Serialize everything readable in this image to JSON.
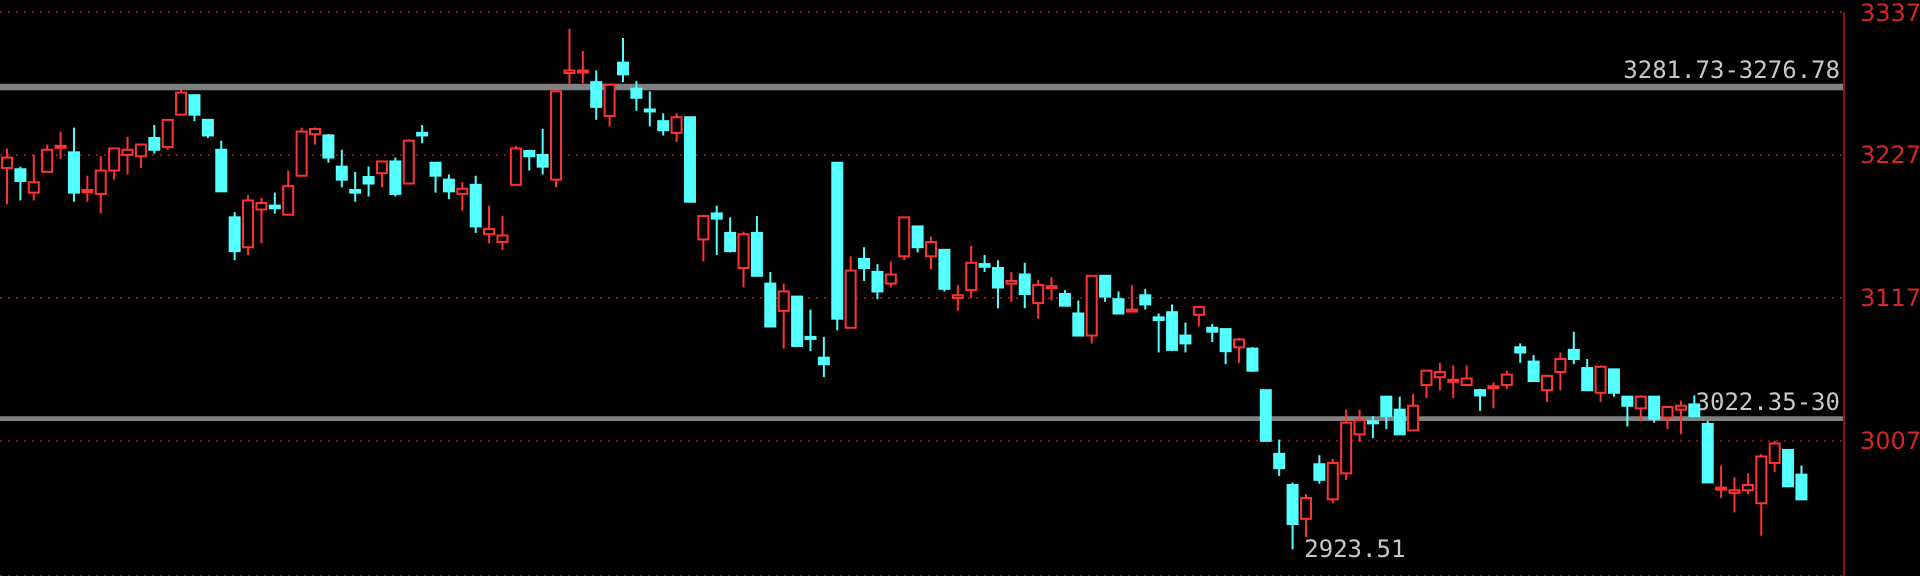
{
  "chart_data": {
    "type": "candlestick",
    "categories": [
      null,
      null,
      null,
      null,
      null,
      null,
      null,
      null,
      null,
      null,
      null,
      null,
      null,
      null,
      null,
      null,
      null,
      null,
      null,
      null,
      null,
      null,
      null,
      null,
      null,
      null,
      null,
      null,
      null,
      null,
      null,
      null,
      null,
      null,
      null,
      null,
      null,
      null,
      null,
      null,
      null,
      null,
      null,
      null,
      null,
      null,
      null,
      null,
      null,
      null,
      null,
      null,
      null,
      null,
      null,
      null,
      null,
      null,
      null,
      null,
      null,
      null,
      null,
      null,
      null,
      null,
      null,
      null,
      null,
      null,
      null,
      null,
      null,
      null,
      null,
      null,
      null,
      null,
      null,
      null,
      null,
      null,
      null,
      null,
      null,
      null,
      null,
      null,
      null,
      null,
      null,
      null,
      null,
      null,
      null,
      null,
      null,
      null,
      null,
      null,
      null,
      null,
      null,
      null,
      null,
      null,
      null,
      null,
      null,
      null,
      null,
      null,
      null,
      null,
      null,
      null,
      null,
      null,
      null,
      null,
      null,
      null,
      null,
      null,
      null,
      null,
      null,
      null,
      null,
      null,
      null,
      null,
      null,
      null,
      null
    ],
    "ohlc": [
      [
        3217,
        3232,
        3189,
        3225
      ],
      [
        3216,
        3218,
        3192,
        3207
      ],
      [
        3198,
        3227,
        3192,
        3206
      ],
      [
        3214,
        3235,
        3214,
        3231
      ],
      [
        3233,
        3245,
        3224,
        3234
      ],
      [
        3229,
        3248,
        3191,
        3198
      ],
      [
        3199,
        3211,
        3191,
        3200
      ],
      [
        3197,
        3226,
        3182,
        3215
      ],
      [
        3215,
        3232,
        3208,
        3232
      ],
      [
        3227,
        3241,
        3212,
        3231
      ],
      [
        3226,
        3235,
        3217,
        3235
      ],
      [
        3240,
        3250,
        3228,
        3231
      ],
      [
        3233,
        3254,
        3231,
        3254
      ],
      [
        3258,
        3277,
        3258,
        3275
      ],
      [
        3273,
        3273,
        3253,
        3258
      ],
      [
        3254,
        3254,
        3240,
        3242
      ],
      [
        3231,
        3238,
        3199,
        3199
      ],
      [
        3179,
        3183,
        3146,
        3153
      ],
      [
        3156,
        3196,
        3150,
        3192
      ],
      [
        3185,
        3194,
        3159,
        3190
      ],
      [
        3188,
        3198,
        3182,
        3186
      ],
      [
        3181,
        3215,
        3181,
        3203
      ],
      [
        3211,
        3248,
        3211,
        3245
      ],
      [
        3243,
        3248,
        3235,
        3247
      ],
      [
        3242,
        3243,
        3221,
        3225
      ],
      [
        3218,
        3231,
        3202,
        3208
      ],
      [
        3200,
        3214,
        3191,
        3198
      ],
      [
        3210,
        3218,
        3195,
        3205
      ],
      [
        3213,
        3222,
        3202,
        3222
      ],
      [
        3222,
        3225,
        3195,
        3197
      ],
      [
        3205,
        3239,
        3205,
        3238
      ],
      [
        3244,
        3250,
        3236,
        3242
      ],
      [
        3221,
        3221,
        3198,
        3211
      ],
      [
        3208,
        3212,
        3193,
        3199
      ],
      [
        3197,
        3206,
        3184,
        3201
      ],
      [
        3204,
        3211,
        3167,
        3172
      ],
      [
        3166,
        3188,
        3159,
        3170
      ],
      [
        3160,
        3180,
        3154,
        3165
      ],
      [
        3204,
        3234,
        3204,
        3232
      ],
      [
        3230,
        3231,
        3215,
        3226
      ],
      [
        3227,
        3247,
        3212,
        3218
      ],
      [
        3208,
        3276.78,
        3202,
        3276
      ],
      [
        3290,
        3324,
        3281.73,
        3292
      ],
      [
        3291,
        3307,
        3282,
        3292
      ],
      [
        3283,
        3292,
        3254,
        3264
      ],
      [
        3257,
        3281,
        3249,
        3281
      ],
      [
        3298,
        3317,
        3283,
        3289
      ],
      [
        3278,
        3284,
        3261,
        3271
      ],
      [
        3262,
        3276,
        3249,
        3261
      ],
      [
        3253,
        3259,
        3242,
        3246
      ],
      [
        3244,
        3259,
        3237,
        3256
      ],
      [
        3256,
        3256,
        3191,
        3191
      ],
      [
        3162,
        3181,
        3145,
        3180
      ],
      [
        3182,
        3188,
        3150,
        3178
      ],
      [
        3167,
        3179,
        3152,
        3153
      ],
      [
        3140,
        3168,
        3125,
        3166
      ],
      [
        3167,
        3180,
        3134,
        3134
      ],
      [
        3128,
        3137,
        3095,
        3095
      ],
      [
        3107,
        3128,
        3078,
        3122
      ],
      [
        3118,
        3118,
        3080,
        3080
      ],
      [
        3087,
        3108,
        3076,
        3086
      ],
      [
        3071,
        3087,
        3056,
        3066
      ],
      [
        3221,
        3221,
        3092,
        3101
      ],
      [
        3094,
        3149,
        3094,
        3138
      ],
      [
        3147,
        3156,
        3130,
        3140
      ],
      [
        3137,
        3143,
        3116,
        3122
      ],
      [
        3128,
        3145,
        3125,
        3135
      ],
      [
        3149,
        3179,
        3146,
        3179
      ],
      [
        3172,
        3172,
        3152,
        3156
      ],
      [
        3149,
        3164,
        3139,
        3160
      ],
      [
        3154,
        3154,
        3122,
        3124
      ],
      [
        3117,
        3127,
        3107,
        3119
      ],
      [
        3123,
        3157,
        3117,
        3144
      ],
      [
        3143,
        3150,
        3137,
        3141
      ],
      [
        3140,
        3146,
        3109,
        3125
      ],
      [
        3128,
        3137,
        3114,
        3130
      ],
      [
        3135,
        3144,
        3109,
        3120
      ],
      [
        3113,
        3131,
        3101,
        3127
      ],
      [
        3125,
        3133,
        3115,
        3126
      ],
      [
        3120,
        3123,
        3111,
        3111
      ],
      [
        3105,
        3115,
        3088,
        3088
      ],
      [
        3088,
        3134,
        3082,
        3134
      ],
      [
        3134,
        3134,
        3114,
        3118
      ],
      [
        3116,
        3122,
        3105,
        3105
      ],
      [
        3107,
        3127,
        3107,
        3108
      ],
      [
        3119,
        3124,
        3108,
        3112
      ],
      [
        3102,
        3105,
        3075,
        3100
      ],
      [
        3106,
        3112,
        3076,
        3077
      ],
      [
        3088,
        3098,
        3075,
        3082
      ],
      [
        3104,
        3110,
        3095,
        3110
      ],
      [
        3094,
        3097,
        3083,
        3091
      ],
      [
        3093,
        3093,
        3066,
        3076
      ],
      [
        3079,
        3086,
        3067,
        3085
      ],
      [
        3078,
        3079,
        3060,
        3061
      ],
      [
        3046,
        3046,
        3007,
        3007
      ],
      [
        2997,
        3008,
        2980,
        2986
      ],
      [
        2973,
        2975,
        2923.51,
        2943
      ],
      [
        2947,
        2966,
        2933,
        2963
      ],
      [
        2989,
        2996,
        2974,
        2977
      ],
      [
        2962,
        2993,
        2959,
        2990
      ],
      [
        2982,
        3031,
        2977,
        3021
      ],
      [
        3012,
        3031,
        3006,
        3023
      ],
      [
        3022,
        3026,
        3009,
        3021
      ],
      [
        3041,
        3041,
        3016,
        3026
      ],
      [
        3031,
        3041,
        3012,
        3012
      ],
      [
        3015,
        3043,
        3015,
        3034
      ],
      [
        3050,
        3061,
        3040,
        3061
      ],
      [
        3056,
        3067,
        3046,
        3060
      ],
      [
        3053,
        3065,
        3040,
        3054
      ],
      [
        3050,
        3065,
        3049,
        3055
      ],
      [
        3046,
        3047,
        3030,
        3042
      ],
      [
        3048,
        3052,
        3032,
        3049
      ],
      [
        3050,
        3061,
        3047,
        3058
      ],
      [
        3079,
        3082,
        3067,
        3075
      ],
      [
        3068,
        3073,
        3053,
        3053
      ],
      [
        3046,
        3058,
        3037,
        3057
      ],
      [
        3060,
        3075,
        3046,
        3070
      ],
      [
        3077,
        3091,
        3066,
        3070
      ],
      [
        3063,
        3070,
        3046,
        3046
      ],
      [
        3044,
        3065,
        3037,
        3064
      ],
      [
        3062,
        3062,
        3041,
        3044
      ],
      [
        3041,
        3041,
        3018,
        3034
      ],
      [
        3032,
        3042,
        3022,
        3041
      ],
      [
        3041,
        3041,
        3021,
        3024
      ],
      [
        3025,
        3034,
        3016,
        3033
      ],
      [
        3031,
        3038,
        3012,
        3034
      ],
      [
        3035,
        3042,
        3026,
        3026
      ],
      [
        3020,
        3022.35,
        2975,
        2975
      ],
      [
        2970,
        2988,
        2963,
        2971
      ],
      [
        2967,
        2979,
        2952,
        2969
      ],
      [
        2969,
        2982,
        2966,
        2973
      ],
      [
        2959,
        2997,
        2934,
        2995
      ],
      [
        2990,
        3007,
        2983,
        3005
      ],
      [
        3000,
        3000,
        2972,
        2972
      ],
      [
        2981,
        2988,
        2962,
        2962
      ]
    ],
    "colors": [
      "#ff3232",
      "#54ffff",
      "#ff3232",
      "#ff3232",
      "#ff3232",
      "#54ffff",
      "#ff3232",
      "#ff3232",
      "#ff3232",
      "#ff3232",
      "#ff3232",
      "#54ffff",
      "#ff3232",
      "#ff3232",
      "#54ffff",
      "#54ffff",
      "#54ffff",
      "#54ffff",
      "#ff3232",
      "#ff3232",
      "#54ffff",
      "#ff3232",
      "#ff3232",
      "#ff3232",
      "#54ffff",
      "#54ffff",
      "#54ffff",
      "#54ffff",
      "#ff3232",
      "#54ffff",
      "#ff3232",
      "#54ffff",
      "#54ffff",
      "#54ffff",
      "#ff3232",
      "#54ffff",
      "#ff3232",
      "#ff3232",
      "#ff3232",
      "#54ffff",
      "#54ffff",
      "#ff3232",
      "#ff3232",
      "#ff3232",
      "#54ffff",
      "#ff3232",
      "#54ffff",
      "#54ffff",
      "#54ffff",
      "#54ffff",
      "#ff3232",
      "#54ffff",
      "#ff3232",
      "#54ffff",
      "#54ffff",
      "#ff3232",
      "#54ffff",
      "#54ffff",
      "#ff3232",
      "#54ffff",
      "#54ffff",
      "#54ffff",
      "#54ffff",
      "#ff3232",
      "#54ffff",
      "#54ffff",
      "#ff3232",
      "#ff3232",
      "#54ffff",
      "#ff3232",
      "#54ffff",
      "#ff3232",
      "#ff3232",
      "#54ffff",
      "#54ffff",
      "#ff3232",
      "#54ffff",
      "#ff3232",
      "#ff3232",
      "#54ffff",
      "#54ffff",
      "#ff3232",
      "#54ffff",
      "#54ffff",
      "#ff3232",
      "#54ffff",
      "#54ffff",
      "#54ffff",
      "#54ffff",
      "#ff3232",
      "#54ffff",
      "#54ffff",
      "#ff3232",
      "#54ffff",
      "#54ffff",
      "#54ffff",
      "#54ffff",
      "#ff3232",
      "#54ffff",
      "#ff3232",
      "#ff3232",
      "#ff3232",
      "#54ffff",
      "#54ffff",
      "#54ffff",
      "#ff3232",
      "#ff3232",
      "#ff3232",
      "#ff3232",
      "#ff3232",
      "#54ffff",
      "#ff3232",
      "#ff3232",
      "#54ffff",
      "#54ffff",
      "#ff3232",
      "#ff3232",
      "#54ffff",
      "#54ffff",
      "#ff3232",
      "#54ffff",
      "#54ffff",
      "#ff3232",
      "#54ffff",
      "#ff3232",
      "#ff3232",
      "#54ffff",
      "#54ffff",
      "#ff3232",
      "#ff3232",
      "#ff3232",
      "#ff3232",
      "#ff3232",
      "#54ffff",
      "#54ffff"
    ],
    "ylim": [
      2903,
      3337
    ],
    "yticks": [
      3007,
      3117,
      3227,
      3337
    ],
    "grid": "y",
    "tick_labels": "y",
    "bands": [
      {
        "axis": "y",
        "from": 3276.78,
        "to": 3281.73,
        "label": "3281.73-3276.78",
        "color": "#808080"
      },
      {
        "axis": "y",
        "from": 3022.35,
        "to": 3026,
        "label": "3022.35-30",
        "color": "#808080"
      }
    ],
    "annotations": [
      "2923.51"
    ]
  }
}
